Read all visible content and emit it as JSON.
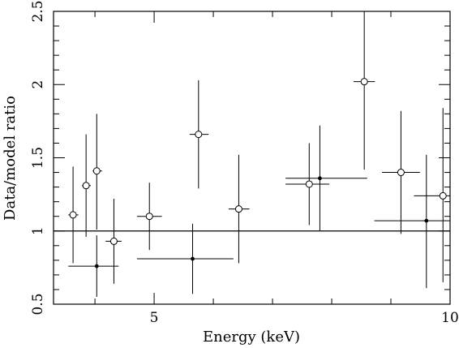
{
  "chart_data": {
    "type": "scatter",
    "xlabel": "Energy (keV)",
    "ylabel": "Data/model ratio",
    "xlim": [
      3.3,
      10
    ],
    "ylim": [
      0.5,
      2.5
    ],
    "x_ticks": [
      {
        "value": 5,
        "label": "5"
      },
      {
        "value": 10,
        "label": "10"
      }
    ],
    "y_ticks": [
      {
        "value": 0.5,
        "label": "0.5"
      },
      {
        "value": 1,
        "label": "1"
      },
      {
        "value": 1.5,
        "label": "1.5"
      },
      {
        "value": 2,
        "label": "2"
      },
      {
        "value": 2.5,
        "label": "2.5"
      }
    ],
    "reference_line": 1.0,
    "series": [
      {
        "marker": "open-circle",
        "points": [
          {
            "x": 3.63,
            "y": 1.11,
            "xlo": 3.55,
            "xhi": 3.72,
            "ylo": 0.78,
            "yhi": 1.44
          },
          {
            "x": 3.85,
            "y": 1.31,
            "xlo": 3.78,
            "xhi": 3.93,
            "ylo": 0.96,
            "yhi": 1.66
          },
          {
            "x": 4.03,
            "y": 1.41,
            "xlo": 3.96,
            "xhi": 4.12,
            "ylo": 1.01,
            "yhi": 1.8
          },
          {
            "x": 4.32,
            "y": 0.93,
            "xlo": 4.18,
            "xhi": 4.45,
            "ylo": 0.64,
            "yhi": 1.22
          },
          {
            "x": 4.92,
            "y": 1.1,
            "xlo": 4.71,
            "xhi": 5.13,
            "ylo": 0.87,
            "yhi": 1.33
          },
          {
            "x": 5.75,
            "y": 1.66,
            "xlo": 5.6,
            "xhi": 5.92,
            "ylo": 1.29,
            "yhi": 2.03
          },
          {
            "x": 6.43,
            "y": 1.15,
            "xlo": 6.26,
            "xhi": 6.61,
            "ylo": 0.78,
            "yhi": 1.52
          },
          {
            "x": 7.62,
            "y": 1.32,
            "xlo": 7.22,
            "xhi": 7.96,
            "ylo": 1.04,
            "yhi": 1.6
          },
          {
            "x": 8.55,
            "y": 2.02,
            "xlo": 8.37,
            "xhi": 8.73,
            "ylo": 1.42,
            "yhi": 2.5
          },
          {
            "x": 9.17,
            "y": 1.4,
            "xlo": 8.85,
            "xhi": 9.49,
            "ylo": 0.98,
            "yhi": 1.82
          },
          {
            "x": 9.88,
            "y": 1.24,
            "xlo": 9.39,
            "xhi": 10.0,
            "ylo": 0.65,
            "yhi": 1.84
          }
        ]
      },
      {
        "marker": "filled-dot",
        "points": [
          {
            "x": 4.03,
            "y": 0.76,
            "xlo": 3.55,
            "xhi": 4.4,
            "ylo": 0.55,
            "yhi": 0.97
          },
          {
            "x": 5.65,
            "y": 0.81,
            "xlo": 4.71,
            "xhi": 6.34,
            "ylo": 0.57,
            "yhi": 1.05
          },
          {
            "x": 7.8,
            "y": 1.36,
            "xlo": 7.22,
            "xhi": 8.6,
            "ylo": 1.0,
            "yhi": 1.72
          },
          {
            "x": 9.6,
            "y": 1.07,
            "xlo": 8.72,
            "xhi": 10.0,
            "ylo": 0.61,
            "yhi": 1.52
          }
        ]
      }
    ]
  }
}
